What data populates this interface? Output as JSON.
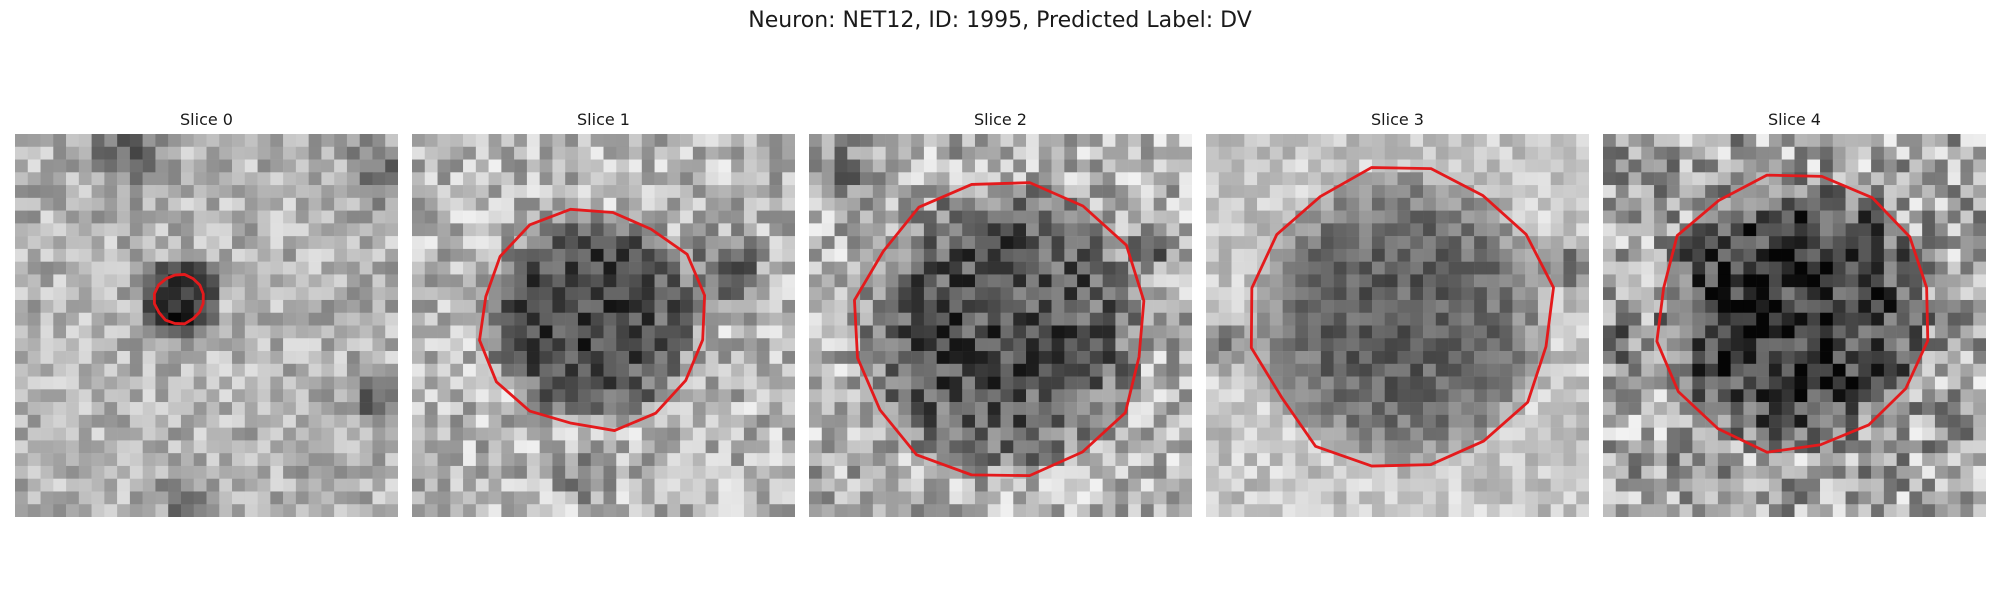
{
  "figure": {
    "title": "Neuron: NET12, ID: 1995, Predicted Label: DV"
  },
  "colormap": "gray",
  "contour_color": "#e41a1c",
  "panels": [
    {
      "title": "Slice 0",
      "roi_radius": 0.065,
      "surround_shading": "dark ring near center-left, mostly light background",
      "seed": 11
    },
    {
      "title": "Slice 1",
      "roi_radius": 0.29,
      "surround_shading": "dark textured blob, light surround",
      "seed": 23
    },
    {
      "title": "Slice 2",
      "roi_radius": 0.38,
      "surround_shading": "large dark textured disk, light surround",
      "seed": 37
    },
    {
      "title": "Slice 3",
      "roi_radius": 0.39,
      "surround_shading": "large medium-dark smooth disk, bright corners",
      "seed": 53
    },
    {
      "title": "Slice 4",
      "roi_radius": 0.36,
      "surround_shading": "large dark noisy disk, noisy surround",
      "seed": 71
    }
  ]
}
